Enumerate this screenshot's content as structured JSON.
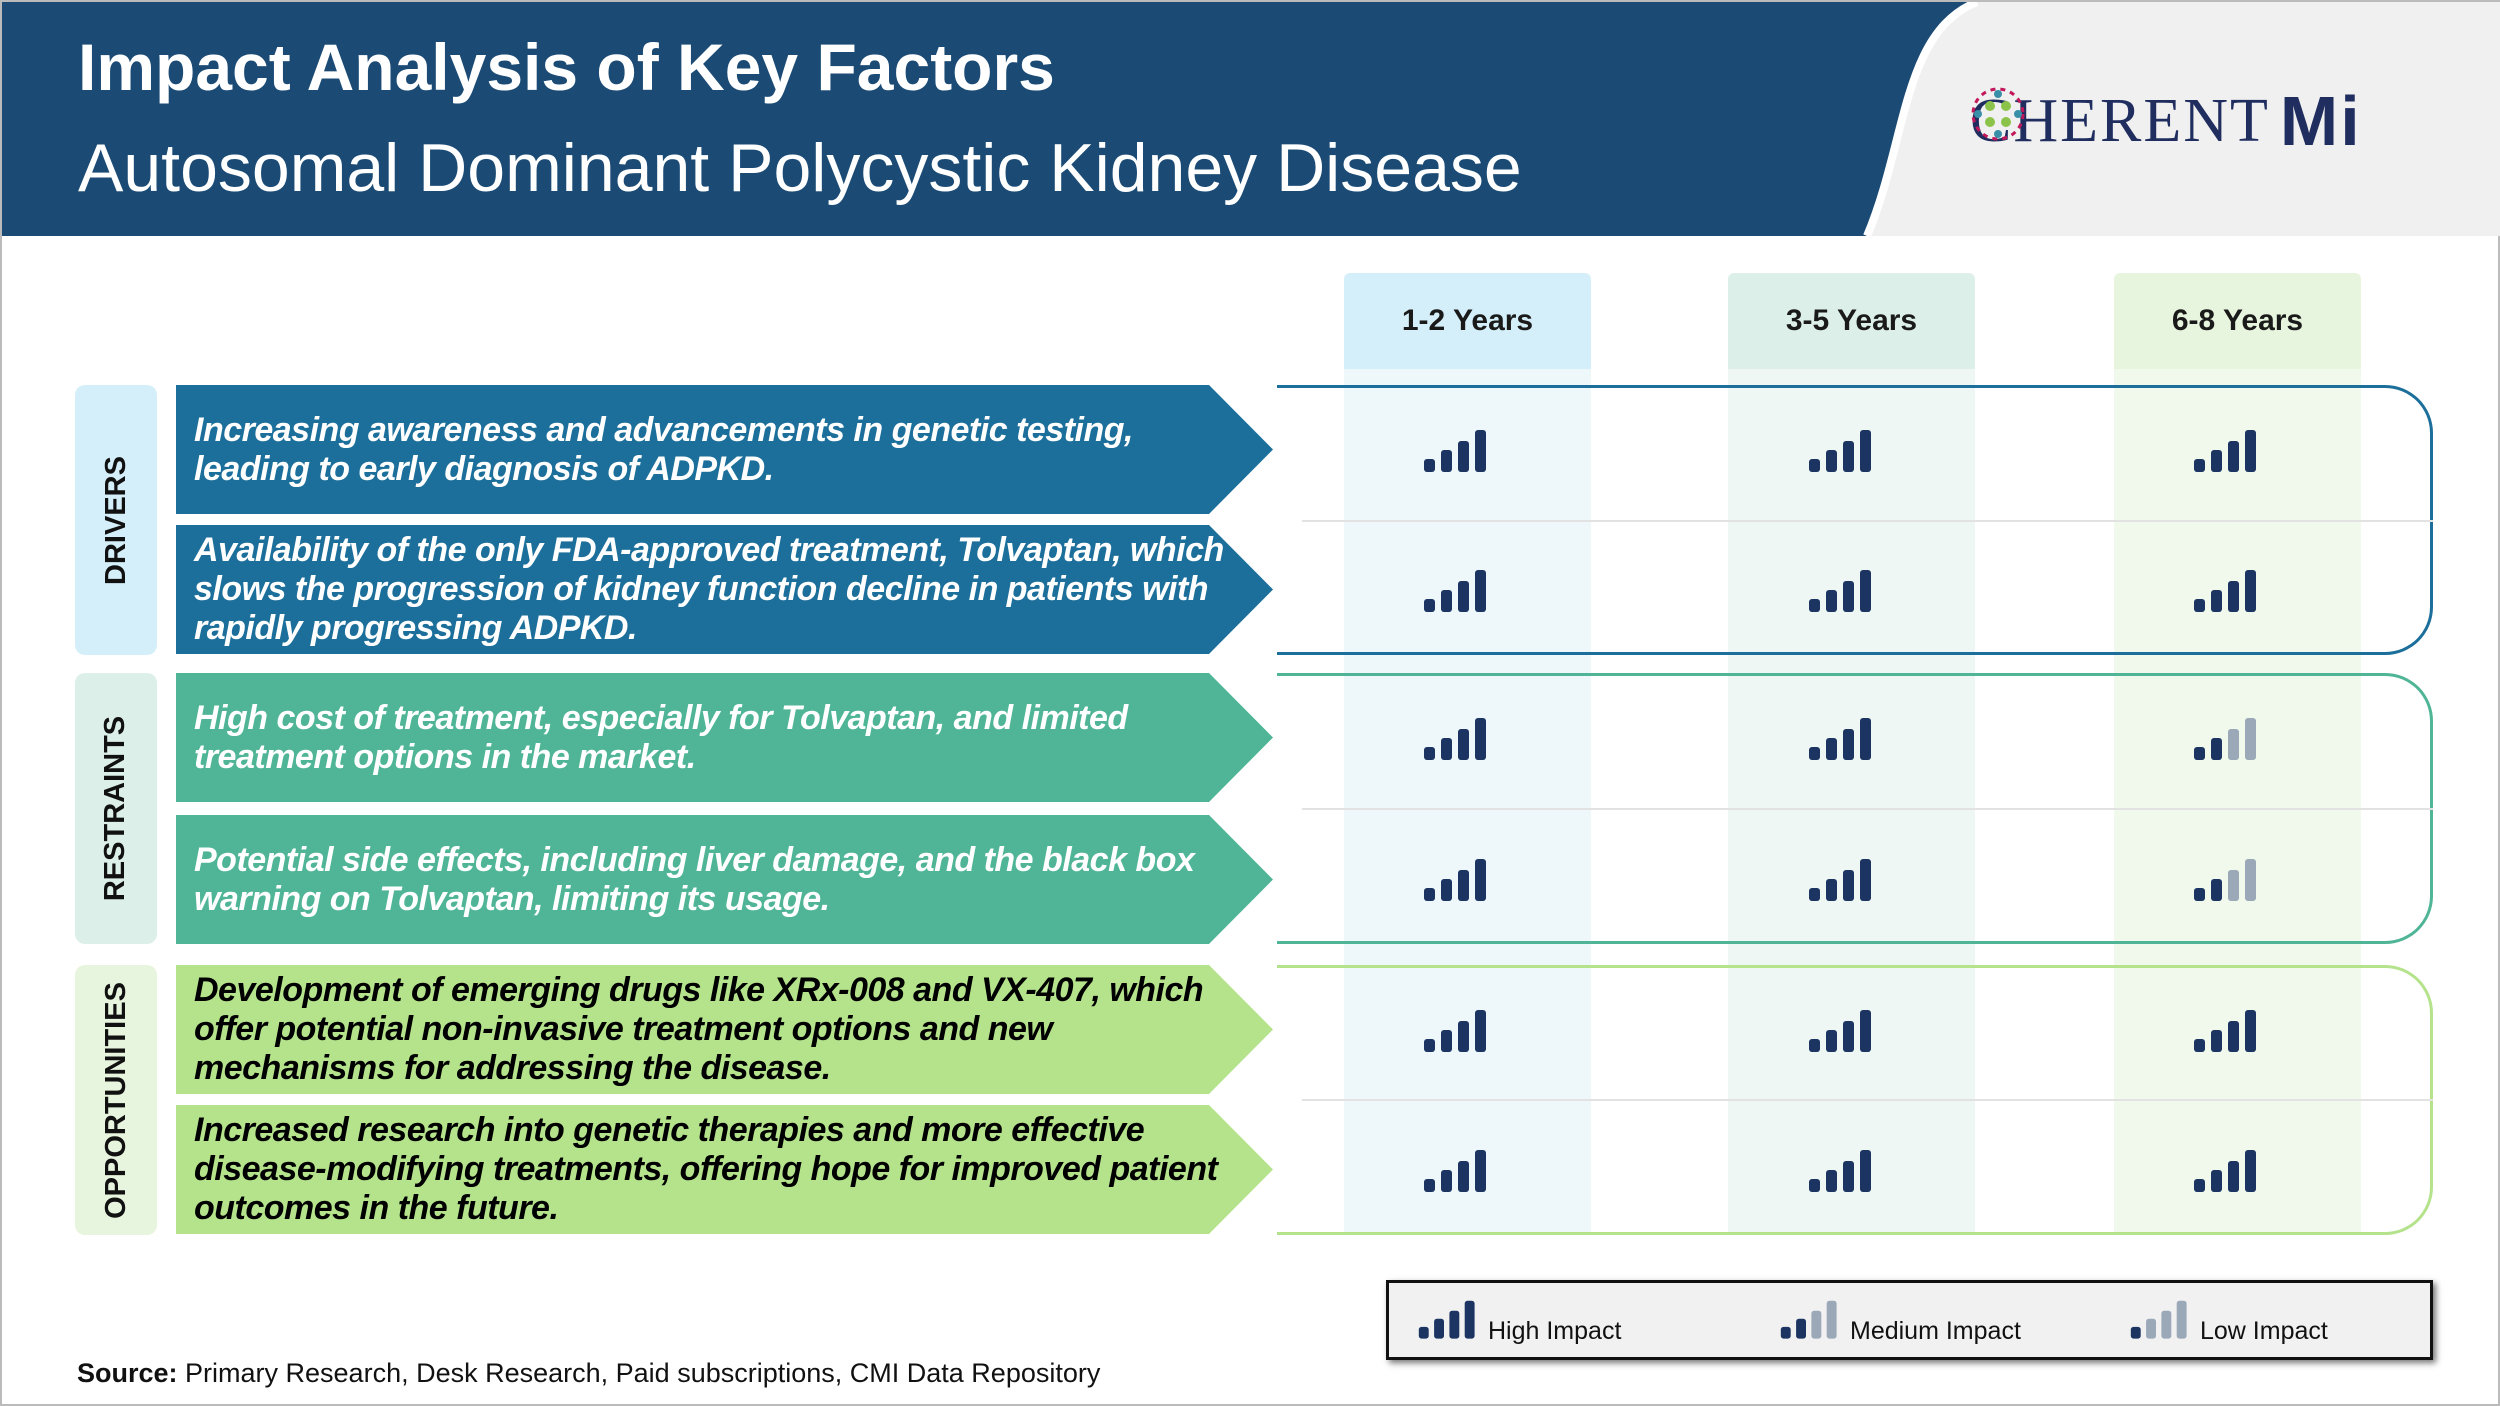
{
  "header": {
    "title": "Impact Analysis of Key Factors",
    "subtitle": "Autosomal Dominant Polycystic Kidney Disease",
    "logo": "COHERENT MI"
  },
  "columns": [
    "1-2 Years",
    "3-5 Years",
    "6-8 Years"
  ],
  "colors": {
    "header": "#1b4b75",
    "drivers": "#1c6f9a",
    "restraints": "#50b597",
    "opportunities": "#b5e38c",
    "high": "#1b3461",
    "faded": "#9aa8b8"
  },
  "categories": [
    {
      "label": "DRIVERS",
      "rows": [
        {
          "text": "Increasing awareness and advancements in genetic testing, leading to early diagnosis of ADPKD.",
          "impact": [
            "high",
            "high",
            "high"
          ]
        },
        {
          "text": "Availability of the only FDA-approved treatment, Tolvaptan, which slows the progression of kidney function decline in patients with rapidly progressing ADPKD.",
          "impact": [
            "high",
            "high",
            "high"
          ]
        }
      ]
    },
    {
      "label": "RESTRAINTS",
      "rows": [
        {
          "text": "High cost of treatment, especially for Tolvaptan, and limited treatment options in the market.",
          "impact": [
            "high",
            "high",
            "medium"
          ]
        },
        {
          "text": "Potential side effects, including liver damage, and the black box warning on Tolvaptan, limiting its usage.",
          "impact": [
            "high",
            "high",
            "medium"
          ]
        }
      ]
    },
    {
      "label": "OPPORTUNITIES",
      "rows": [
        {
          "text": "Development of emerging drugs like XRx-008 and VX-407, which offer potential non-invasive treatment options and new mechanisms for addressing the disease.",
          "impact": [
            "high",
            "high",
            "high"
          ]
        },
        {
          "text": "Increased research into genetic therapies and more effective disease-modifying treatments, offering hope for improved patient outcomes in the future.",
          "impact": [
            "high",
            "high",
            "high"
          ]
        }
      ]
    }
  ],
  "legend": {
    "high": "High Impact",
    "medium": "Medium Impact",
    "low": "Low Impact"
  },
  "source": {
    "label": "Source:",
    "text": " Primary Research, Desk Research, Paid subscriptions, CMI Data Repository"
  }
}
